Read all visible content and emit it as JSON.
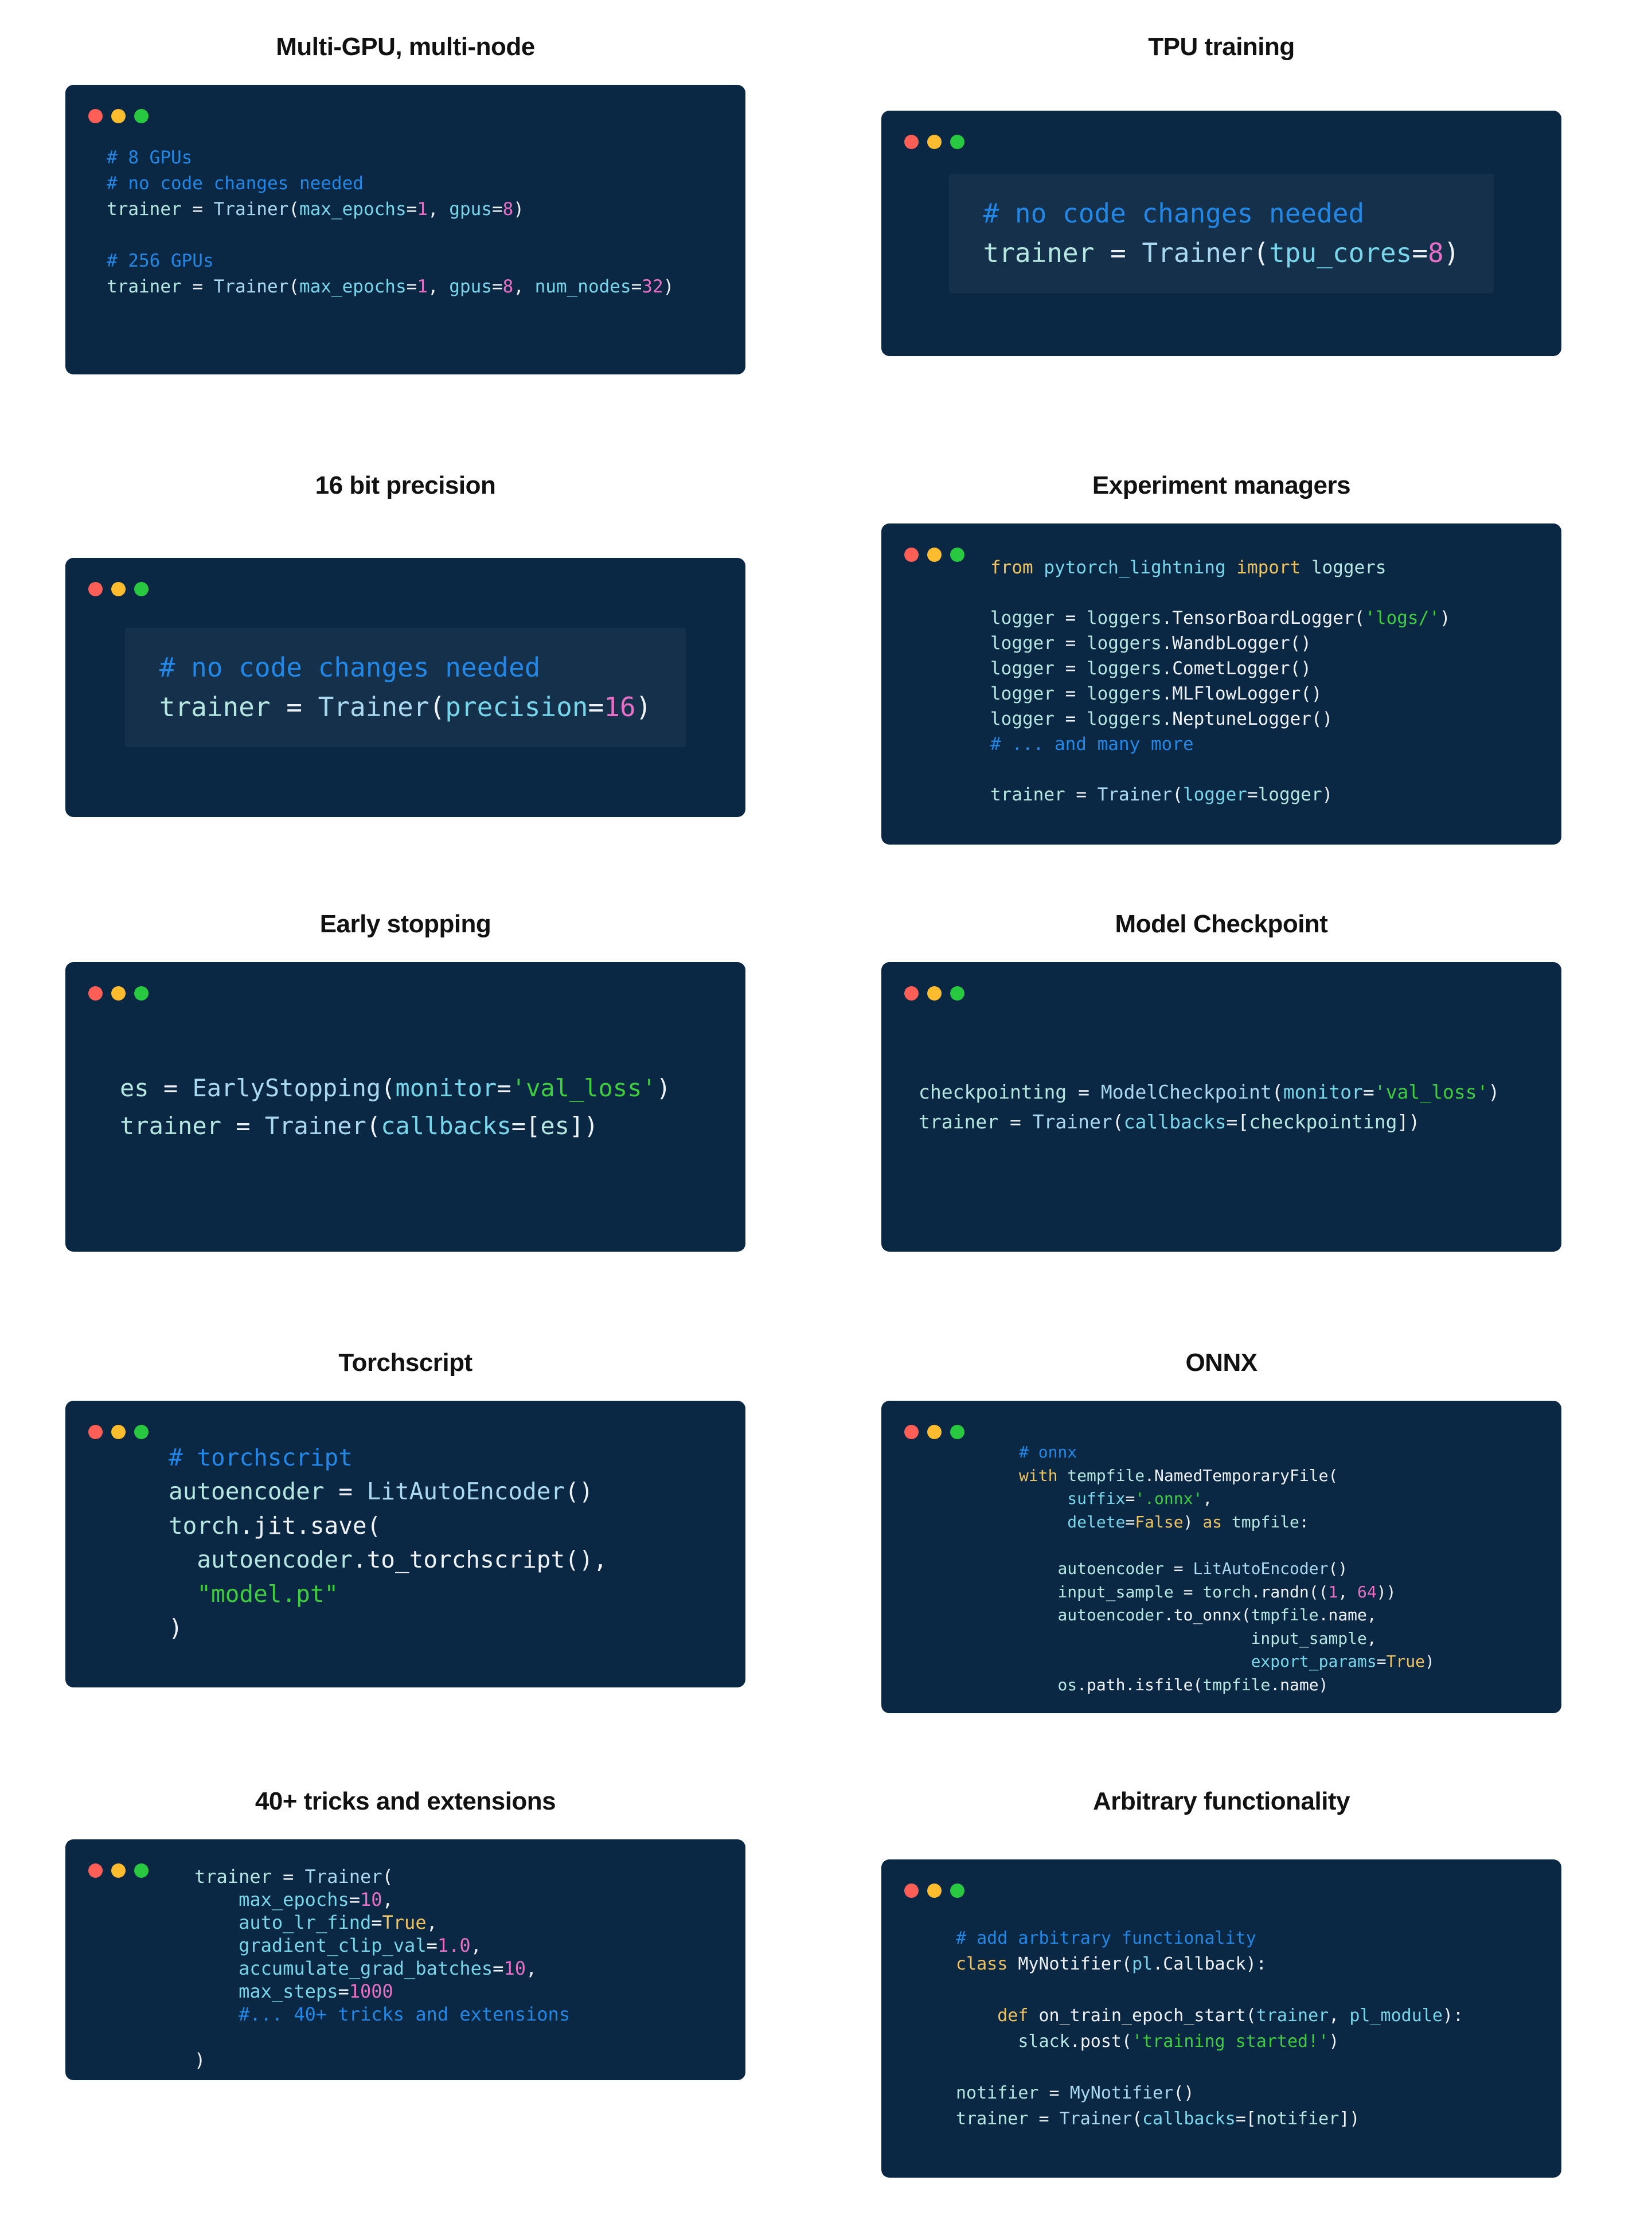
{
  "colors": {
    "card_bg": "#0a2743",
    "title": "#111111",
    "pln": "#eef2f4",
    "com": "#2287e5",
    "kw": "#eec35f",
    "str": "#3ecd3e",
    "num": "#e570c5",
    "var_c": "#b5e7e0",
    "call_c": "#a9d8f0",
    "param_c": "#79d6ea",
    "light_red": "#ff5f57",
    "light_yellow": "#febc2e",
    "light_green": "#28c840",
    "surface": "rgba(255,255,255,0.045)"
  },
  "window_controls": [
    "close",
    "minimize",
    "zoom"
  ],
  "cards": [
    {
      "title": "Multi-GPU, multi-node",
      "code_lines": [
        [
          [
            "com",
            "# 8 GPUs"
          ]
        ],
        [
          [
            "com",
            "# no code changes needed"
          ]
        ],
        [
          [
            "var",
            "trainer"
          ],
          [
            "pln",
            " = "
          ],
          [
            "call",
            "Trainer"
          ],
          [
            "pln",
            "("
          ],
          [
            "param",
            "max_epochs"
          ],
          [
            "pln",
            "="
          ],
          [
            "num",
            "1"
          ],
          [
            "pln",
            ", "
          ],
          [
            "param",
            "gpus"
          ],
          [
            "pln",
            "="
          ],
          [
            "num",
            "8"
          ],
          [
            "pln",
            ")"
          ]
        ],
        [],
        [
          [
            "com",
            "# 256 GPUs"
          ]
        ],
        [
          [
            "var",
            "trainer"
          ],
          [
            "pln",
            " = "
          ],
          [
            "call",
            "Trainer"
          ],
          [
            "pln",
            "("
          ],
          [
            "param",
            "max_epochs"
          ],
          [
            "pln",
            "="
          ],
          [
            "num",
            "1"
          ],
          [
            "pln",
            ", "
          ],
          [
            "param",
            "gpus"
          ],
          [
            "pln",
            "="
          ],
          [
            "num",
            "8"
          ],
          [
            "pln",
            ", "
          ],
          [
            "param",
            "num_nodes"
          ],
          [
            "pln",
            "="
          ],
          [
            "num",
            "32"
          ],
          [
            "pln",
            ")"
          ]
        ]
      ]
    },
    {
      "title": "TPU training",
      "code_lines": [
        [
          [
            "com",
            "# no code changes needed"
          ]
        ],
        [
          [
            "var",
            "trainer"
          ],
          [
            "pln",
            " = "
          ],
          [
            "call",
            "Trainer"
          ],
          [
            "pln",
            "("
          ],
          [
            "param",
            "tpu_cores"
          ],
          [
            "pln",
            "="
          ],
          [
            "num",
            "8"
          ],
          [
            "pln",
            ")"
          ]
        ]
      ]
    },
    {
      "title": "16 bit precision",
      "code_lines": [
        [
          [
            "com",
            "# no code changes needed"
          ]
        ],
        [
          [
            "var",
            "trainer"
          ],
          [
            "pln",
            " = "
          ],
          [
            "call",
            "Trainer"
          ],
          [
            "pln",
            "("
          ],
          [
            "param",
            "precision"
          ],
          [
            "pln",
            "="
          ],
          [
            "num",
            "16"
          ],
          [
            "pln",
            ")"
          ]
        ]
      ]
    },
    {
      "title": "Experiment managers",
      "code_lines": [
        [
          [
            "kw",
            "from"
          ],
          [
            "pln",
            " "
          ],
          [
            "param",
            "pytorch_lightning"
          ],
          [
            "pln",
            " "
          ],
          [
            "kw",
            "import"
          ],
          [
            "pln",
            " "
          ],
          [
            "var",
            "loggers"
          ]
        ],
        [],
        [
          [
            "var",
            "logger"
          ],
          [
            "pln",
            " = "
          ],
          [
            "var",
            "loggers"
          ],
          [
            "pln",
            ".TensorBoardLogger("
          ],
          [
            "str",
            "'logs/'"
          ],
          [
            "pln",
            ")"
          ]
        ],
        [
          [
            "var",
            "logger"
          ],
          [
            "pln",
            " = "
          ],
          [
            "var",
            "loggers"
          ],
          [
            "pln",
            ".WandbLogger()"
          ]
        ],
        [
          [
            "var",
            "logger"
          ],
          [
            "pln",
            " = "
          ],
          [
            "var",
            "loggers"
          ],
          [
            "pln",
            ".CometLogger()"
          ]
        ],
        [
          [
            "var",
            "logger"
          ],
          [
            "pln",
            " = "
          ],
          [
            "var",
            "loggers"
          ],
          [
            "pln",
            ".MLFlowLogger()"
          ]
        ],
        [
          [
            "var",
            "logger"
          ],
          [
            "pln",
            " = "
          ],
          [
            "var",
            "loggers"
          ],
          [
            "pln",
            ".NeptuneLogger()"
          ]
        ],
        [
          [
            "com",
            "# ... and many more"
          ]
        ],
        [],
        [
          [
            "var",
            "trainer"
          ],
          [
            "pln",
            " = "
          ],
          [
            "call",
            "Trainer"
          ],
          [
            "pln",
            "("
          ],
          [
            "param",
            "logger"
          ],
          [
            "pln",
            "="
          ],
          [
            "var",
            "logger"
          ],
          [
            "pln",
            ")"
          ]
        ]
      ]
    },
    {
      "title": "Early stopping",
      "code_lines": [
        [
          [
            "var",
            "es"
          ],
          [
            "pln",
            " = "
          ],
          [
            "call",
            "EarlyStopping"
          ],
          [
            "pln",
            "("
          ],
          [
            "param",
            "monitor"
          ],
          [
            "pln",
            "="
          ],
          [
            "str",
            "'val_loss'"
          ],
          [
            "pln",
            ")"
          ]
        ],
        [
          [
            "var",
            "trainer"
          ],
          [
            "pln",
            " = "
          ],
          [
            "call",
            "Trainer"
          ],
          [
            "pln",
            "("
          ],
          [
            "param",
            "callbacks"
          ],
          [
            "pln",
            "=["
          ],
          [
            "var",
            "es"
          ],
          [
            "pln",
            "])"
          ]
        ]
      ]
    },
    {
      "title": "Model Checkpoint",
      "code_lines": [
        [
          [
            "var",
            "checkpointing"
          ],
          [
            "pln",
            " = "
          ],
          [
            "call",
            "ModelCheckpoint"
          ],
          [
            "pln",
            "("
          ],
          [
            "param",
            "monitor"
          ],
          [
            "pln",
            "="
          ],
          [
            "str",
            "'val_loss'"
          ],
          [
            "pln",
            ")"
          ]
        ],
        [
          [
            "var",
            "trainer"
          ],
          [
            "pln",
            " = "
          ],
          [
            "call",
            "Trainer"
          ],
          [
            "pln",
            "("
          ],
          [
            "param",
            "callbacks"
          ],
          [
            "pln",
            "=["
          ],
          [
            "var",
            "checkpointing"
          ],
          [
            "pln",
            "])"
          ]
        ]
      ]
    },
    {
      "title": "Torchscript",
      "code_lines": [
        [
          [
            "com",
            "# torchscript"
          ]
        ],
        [
          [
            "var",
            "autoencoder"
          ],
          [
            "pln",
            " = "
          ],
          [
            "call",
            "LitAutoEncoder"
          ],
          [
            "pln",
            "()"
          ]
        ],
        [
          [
            "var",
            "torch"
          ],
          [
            "pln",
            ".jit.save("
          ]
        ],
        [
          [
            "pln",
            "  "
          ],
          [
            "var",
            "autoencoder"
          ],
          [
            "pln",
            ".to_torchscript(),"
          ]
        ],
        [
          [
            "pln",
            "  "
          ],
          [
            "str",
            "\"model.pt\""
          ]
        ],
        [
          [
            "pln",
            ")"
          ]
        ]
      ]
    },
    {
      "title": "ONNX",
      "code_lines": [
        [
          [
            "com",
            "# onnx"
          ]
        ],
        [
          [
            "kw",
            "with"
          ],
          [
            "pln",
            " "
          ],
          [
            "var",
            "tempfile"
          ],
          [
            "pln",
            ".NamedTemporaryFile("
          ]
        ],
        [
          [
            "pln",
            "     "
          ],
          [
            "param",
            "suffix"
          ],
          [
            "pln",
            "="
          ],
          [
            "str",
            "'.onnx'"
          ],
          [
            "pln",
            ","
          ]
        ],
        [
          [
            "pln",
            "     "
          ],
          [
            "param",
            "delete"
          ],
          [
            "pln",
            "="
          ],
          [
            "kw",
            "False"
          ],
          [
            "pln",
            ") "
          ],
          [
            "kw",
            "as"
          ],
          [
            "pln",
            " "
          ],
          [
            "var",
            "tmpfile"
          ],
          [
            "pln",
            ":"
          ]
        ],
        [],
        [
          [
            "pln",
            "    "
          ],
          [
            "var",
            "autoencoder"
          ],
          [
            "pln",
            " = "
          ],
          [
            "call",
            "LitAutoEncoder"
          ],
          [
            "pln",
            "()"
          ]
        ],
        [
          [
            "pln",
            "    "
          ],
          [
            "var",
            "input_sample"
          ],
          [
            "pln",
            " = "
          ],
          [
            "var",
            "torch"
          ],
          [
            "pln",
            ".randn(("
          ],
          [
            "num",
            "1"
          ],
          [
            "pln",
            ", "
          ],
          [
            "num",
            "64"
          ],
          [
            "pln",
            "))"
          ]
        ],
        [
          [
            "pln",
            "    "
          ],
          [
            "var",
            "autoencoder"
          ],
          [
            "pln",
            ".to_onnx("
          ],
          [
            "var",
            "tmpfile"
          ],
          [
            "pln",
            ".name,"
          ]
        ],
        [
          [
            "pln",
            "                        "
          ],
          [
            "var",
            "input_sample"
          ],
          [
            "pln",
            ","
          ]
        ],
        [
          [
            "pln",
            "                        "
          ],
          [
            "param",
            "export_params"
          ],
          [
            "pln",
            "="
          ],
          [
            "kw",
            "True"
          ],
          [
            "pln",
            ")"
          ]
        ],
        [
          [
            "pln",
            "    "
          ],
          [
            "var",
            "os"
          ],
          [
            "pln",
            ".path.isfile("
          ],
          [
            "var",
            "tmpfile"
          ],
          [
            "pln",
            ".name)"
          ]
        ]
      ]
    },
    {
      "title": "40+ tricks and extensions",
      "code_lines": [
        [
          [
            "var",
            "trainer"
          ],
          [
            "pln",
            " = "
          ],
          [
            "call",
            "Trainer"
          ],
          [
            "pln",
            "("
          ]
        ],
        [
          [
            "pln",
            "    "
          ],
          [
            "param",
            "max_epochs"
          ],
          [
            "pln",
            "="
          ],
          [
            "num",
            "10"
          ],
          [
            "pln",
            ","
          ]
        ],
        [
          [
            "pln",
            "    "
          ],
          [
            "param",
            "auto_lr_find"
          ],
          [
            "pln",
            "="
          ],
          [
            "kw",
            "True"
          ],
          [
            "pln",
            ","
          ]
        ],
        [
          [
            "pln",
            "    "
          ],
          [
            "param",
            "gradient_clip_val"
          ],
          [
            "pln",
            "="
          ],
          [
            "num",
            "1.0"
          ],
          [
            "pln",
            ","
          ]
        ],
        [
          [
            "pln",
            "    "
          ],
          [
            "param",
            "accumulate_grad_batches"
          ],
          [
            "pln",
            "="
          ],
          [
            "num",
            "10"
          ],
          [
            "pln",
            ","
          ]
        ],
        [
          [
            "pln",
            "    "
          ],
          [
            "param",
            "max_steps"
          ],
          [
            "pln",
            "="
          ],
          [
            "num",
            "1000"
          ]
        ],
        [
          [
            "pln",
            "    "
          ],
          [
            "com",
            "#... 40+ tricks and extensions"
          ]
        ],
        [],
        [
          [
            "pln",
            ")"
          ]
        ]
      ]
    },
    {
      "title": "Arbitrary functionality",
      "code_lines": [
        [
          [
            "com",
            "# add arbitrary functionality"
          ]
        ],
        [
          [
            "kw",
            "class"
          ],
          [
            "pln",
            " MyNotifier("
          ],
          [
            "param",
            "pl"
          ],
          [
            "pln",
            ".Callback):"
          ]
        ],
        [],
        [
          [
            "pln",
            "    "
          ],
          [
            "kw",
            "def"
          ],
          [
            "pln",
            " on_train_epoch_start("
          ],
          [
            "param",
            "trainer"
          ],
          [
            "pln",
            ", "
          ],
          [
            "param",
            "pl_module"
          ],
          [
            "pln",
            "):"
          ]
        ],
        [
          [
            "pln",
            "      "
          ],
          [
            "var",
            "slack"
          ],
          [
            "pln",
            ".post("
          ],
          [
            "str",
            "'training started!'"
          ],
          [
            "pln",
            ")"
          ]
        ],
        [],
        [
          [
            "var",
            "notifier"
          ],
          [
            "pln",
            " = "
          ],
          [
            "call",
            "MyNotifier"
          ],
          [
            "pln",
            "()"
          ]
        ],
        [
          [
            "var",
            "trainer"
          ],
          [
            "pln",
            " = "
          ],
          [
            "call",
            "Trainer"
          ],
          [
            "pln",
            "("
          ],
          [
            "param",
            "callbacks"
          ],
          [
            "pln",
            "=["
          ],
          [
            "var",
            "notifier"
          ],
          [
            "pln",
            "])"
          ]
        ]
      ]
    }
  ]
}
